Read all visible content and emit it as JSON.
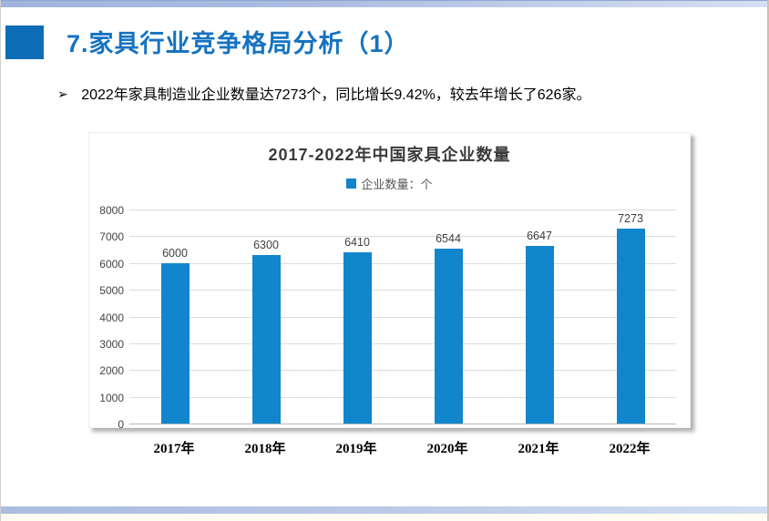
{
  "slide": {
    "title": "7.家具行业竞争格局分析（1）",
    "bullet_marker": "➢",
    "bullet_text": "2022年家具制造业企业数量达7273个，同比增长9.42%，较去年增长了626家。"
  },
  "chart_data": {
    "type": "bar",
    "title": "2017-2022年中国家具企业数量",
    "legend": {
      "label": "企业数量：个",
      "position": "top"
    },
    "categories": [
      "2017年",
      "2018年",
      "2019年",
      "2020年",
      "2021年",
      "2022年"
    ],
    "values": [
      6000,
      6300,
      6410,
      6544,
      6647,
      7273
    ],
    "ylim": [
      0,
      8000
    ],
    "yticks": [
      0,
      1000,
      2000,
      3000,
      4000,
      5000,
      6000,
      7000,
      8000
    ],
    "grid": true,
    "bar_color": "#1286cd"
  },
  "colors": {
    "accent_blue": "#1573c0",
    "title_square_blue": "#0d6db6",
    "bar_blue": "#1286cd",
    "strip_blue": "#aabcdf",
    "gridline_gray": "#dcdcdc"
  }
}
